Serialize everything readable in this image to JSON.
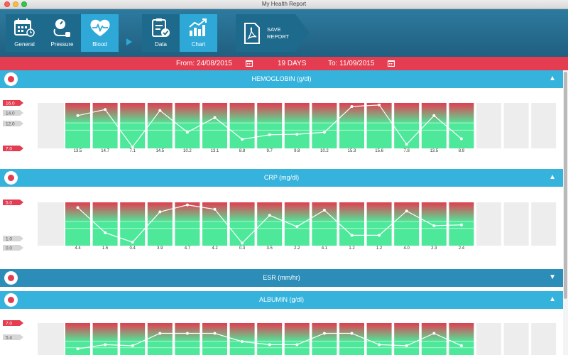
{
  "window": {
    "title": "My Health Report"
  },
  "toolbar": {
    "buttons": [
      {
        "label": "General",
        "icon": "calendar-icon"
      },
      {
        "label": "Pressure",
        "icon": "blood-pressure-icon"
      },
      {
        "label": "Blood",
        "icon": "heart-pulse-icon",
        "active": true
      }
    ],
    "view_buttons": [
      {
        "label": "Data",
        "icon": "clipboard-check-icon"
      },
      {
        "label": "Chart",
        "icon": "chart-up-icon",
        "active": true
      }
    ],
    "save": {
      "line1": "SAVE",
      "line2": "REPORT",
      "icon": "pdf-icon"
    }
  },
  "datebar": {
    "from_label": "From: 24/08/2015",
    "days_label": "19 DAYS",
    "to_label": "To: 11/09/2015"
  },
  "colors": {
    "accent_blue": "#35b3dd",
    "red": "#e43c50",
    "green": "#4ee89a",
    "toolbar": "#205f80"
  },
  "sections": [
    {
      "title": "HEMOGLOBIN (g/dl)",
      "toggle": "▲",
      "expanded": true
    },
    {
      "title": "CRP (mg/dl)",
      "toggle": "▲",
      "expanded": true
    },
    {
      "title": "ESR (mm/hr)",
      "toggle": "▼",
      "expanded": false
    },
    {
      "title": "ALBUMIN (g/dl)",
      "toggle": "▲",
      "expanded": true
    }
  ],
  "chart_data": [
    {
      "type": "line",
      "title": "HEMOGLOBIN (g/dl)",
      "y_markers": [
        {
          "label": "16.0",
          "value": 16.0,
          "color": "red"
        },
        {
          "label": "14.0",
          "value": 14.0,
          "color": "grey"
        },
        {
          "label": "12.0",
          "value": 12.0,
          "color": "grey"
        },
        {
          "label": "7.0",
          "value": 7.0,
          "color": "red"
        }
      ],
      "values": [
        13.5,
        14.7,
        7.1,
        14.5,
        10.2,
        13.1,
        8.8,
        9.7,
        9.8,
        10.2,
        15.3,
        15.6,
        7.8,
        13.5,
        8.9
      ],
      "value_labels": [
        "13.5",
        "14.7",
        "7.1",
        "14.5",
        "10.2",
        "13.1",
        "8.8",
        "9.7",
        "9.8",
        "10.2",
        "15.3",
        "15.6",
        "7.8",
        "13.5",
        "8.9"
      ],
      "empty_columns": 3
    },
    {
      "type": "line",
      "title": "CRP (mg/dl)",
      "y_markers": [
        {
          "label": "5.0",
          "value": 5.0,
          "color": "red"
        },
        {
          "label": "1.0",
          "value": 1.0,
          "color": "grey"
        },
        {
          "label": "0.0",
          "value": 0.0,
          "color": "grey"
        }
      ],
      "values": [
        4.4,
        1.5,
        0.4,
        3.9,
        4.7,
        4.2,
        0.3,
        3.5,
        2.2,
        4.1,
        1.2,
        1.2,
        4.0,
        2.3,
        2.4
      ],
      "value_labels": [
        "4.4",
        "1.5",
        "0.4",
        "3.9",
        "4.7",
        "4.2",
        "0.3",
        "3.5",
        "2.2",
        "4.1",
        "1.2",
        "1.2",
        "4.0",
        "2.3",
        "2.4"
      ],
      "empty_columns": 3
    },
    {
      "type": "line",
      "title": "ALBUMIN (g/dl)",
      "y_markers": [
        {
          "label": "7.0",
          "value": 7.0,
          "color": "red"
        },
        {
          "label": "5.4",
          "value": 5.4,
          "color": "grey"
        }
      ],
      "values": [
        4.5,
        4.9,
        4.8,
        6.0,
        6.0,
        6.0,
        5.2,
        4.9,
        4.9,
        6.0,
        6.0,
        4.9,
        4.8,
        6.0,
        4.8
      ],
      "value_labels": [],
      "empty_columns": 3
    }
  ]
}
